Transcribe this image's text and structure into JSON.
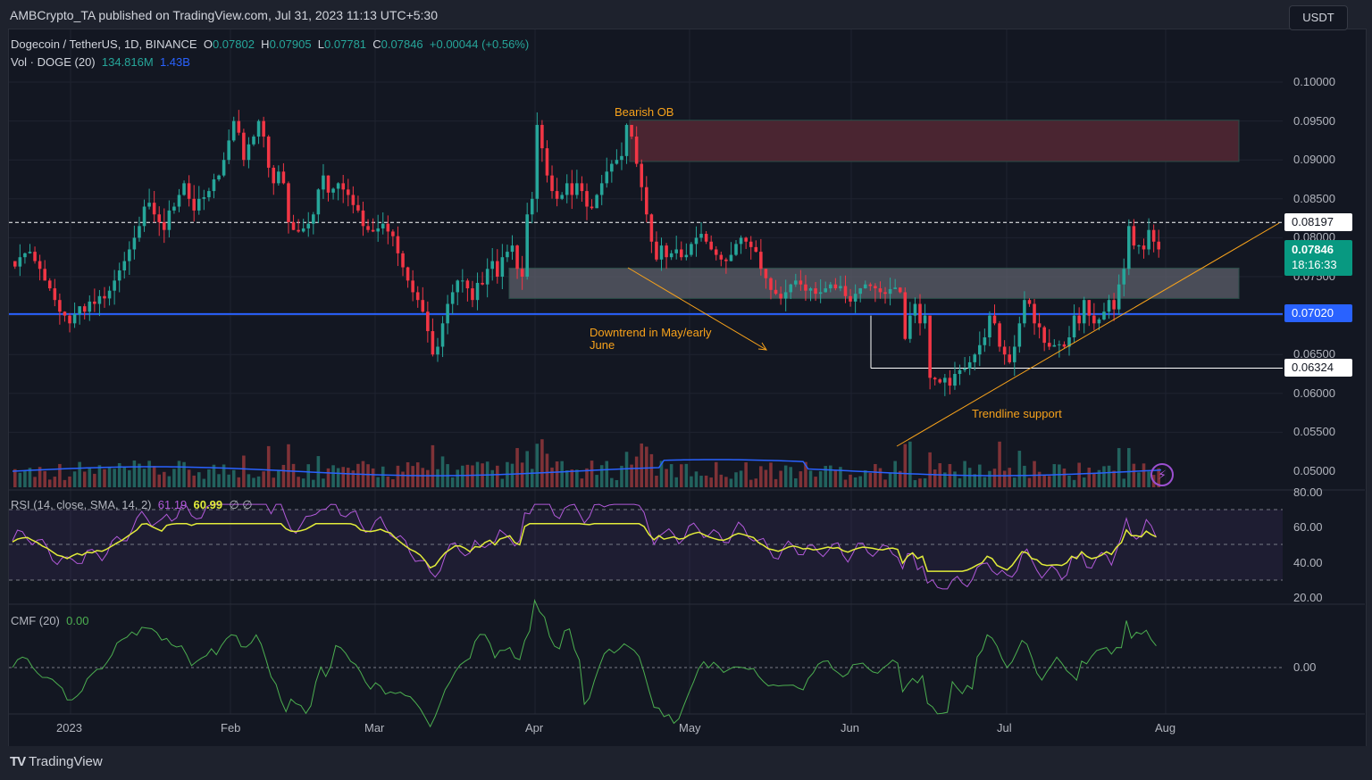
{
  "header": {
    "published_by": "AMBCrypto_TA published on TradingView.com, Jul 31, 2023 11:13 UTC+5:30"
  },
  "legend": {
    "symbol": "Dogecoin / TetherUS, 1D, BINANCE",
    "open_label": "O",
    "open": "0.07802",
    "high_label": "H",
    "high": "0.07905",
    "low_label": "L",
    "low": "0.07781",
    "close_label": "C",
    "close": "0.07846",
    "change": "+0.00044 (+0.56%)",
    "volume_title": "Vol · DOGE (20)",
    "volume_value": "134.816M",
    "volume_ma": "1.43B",
    "rsi_title": "RSI (14, close, SMA, 14, 2)",
    "rsi_value": "61.19",
    "rsi_ma_value": "60.99",
    "rsi_extra": "∅  ∅",
    "cmf_title": "CMF (20)",
    "cmf_value": "0.00"
  },
  "price_scale": {
    "currency_button": "USDT",
    "ticks": [
      "0.10000",
      "0.09500",
      "0.09000",
      "0.08500",
      "0.08000",
      "0.07500",
      "0.06500",
      "0.06000",
      "0.05500",
      "0.05000"
    ],
    "tags": {
      "resistance": "0.08197",
      "last_price": "0.07846",
      "countdown": "18:16:33",
      "support_blue": "0.07020",
      "support_low": "0.06324"
    }
  },
  "rsi_scale": {
    "ticks": [
      "80.00",
      "60.00",
      "40.00",
      "20.00"
    ]
  },
  "cmf_scale": {
    "ticks": [
      "0.00"
    ]
  },
  "time_axis": {
    "labels": [
      "2023",
      "Feb",
      "Mar",
      "Apr",
      "May",
      "Jun",
      "Jul",
      "Aug"
    ]
  },
  "annotations": {
    "bearish_ob": "Bearish OB",
    "downtrend": "Downtrend in May/early",
    "downtrend2": "June",
    "trendline": "Trendline support"
  },
  "footer": {
    "brand": "TradingView"
  },
  "colors": {
    "up": "#26a69a",
    "down": "#f23645",
    "vol_up": "#22625e",
    "vol_down": "#7f3237",
    "vol_ma": "#2962ff",
    "rsi": "#b159d9",
    "rsi_ma": "#e2ec3a",
    "cmf": "#4caf50",
    "annotation": "#f7a21b",
    "ob_zone": "#4a2531",
    "grey_zone": "#5d606b",
    "blue_line": "#2962ff"
  },
  "chart_data": {
    "type": "candlestick",
    "title": "Dogecoin / TetherUS, 1D, BINANCE",
    "xlabel": "",
    "ylabel": "USDT",
    "ylim": [
      0.0485,
      0.1035
    ],
    "x_range": [
      "2022-12-20",
      "2023-07-31"
    ],
    "levels": {
      "resistance": 0.08197,
      "support": 0.0702,
      "low_line": 0.06324
    },
    "zones": [
      {
        "name": "Bearish OB",
        "from": 0.0898,
        "to": 0.0951,
        "start": "2023-04-20"
      },
      {
        "name": "Grey demand zone",
        "from": 0.0722,
        "to": 0.0761,
        "start": "2023-03-28"
      }
    ],
    "closes": [
      0.0763,
      0.0775,
      0.078,
      0.0782,
      0.077,
      0.076,
      0.0745,
      0.0735,
      0.072,
      0.0705,
      0.07,
      0.069,
      0.0702,
      0.0712,
      0.0705,
      0.0718,
      0.0715,
      0.0725,
      0.0722,
      0.0732,
      0.0745,
      0.0758,
      0.077,
      0.0785,
      0.08,
      0.0815,
      0.084,
      0.0845,
      0.083,
      0.082,
      0.081,
      0.0835,
      0.084,
      0.0855,
      0.087,
      0.085,
      0.0835,
      0.085,
      0.0852,
      0.086,
      0.0875,
      0.088,
      0.09,
      0.0925,
      0.095,
      0.0935,
      0.09,
      0.092,
      0.093,
      0.095,
      0.093,
      0.089,
      0.087,
      0.0885,
      0.087,
      0.082,
      0.081,
      0.0808,
      0.0812,
      0.0818,
      0.083,
      0.0862,
      0.088,
      0.0858,
      0.0863,
      0.087,
      0.0862,
      0.0855,
      0.0842,
      0.0835,
      0.0815,
      0.081,
      0.0808,
      0.0812,
      0.0818,
      0.0808,
      0.0802,
      0.078,
      0.0762,
      0.0745,
      0.073,
      0.072,
      0.0705,
      0.068,
      0.065,
      0.066,
      0.069,
      0.0715,
      0.073,
      0.0745,
      0.0745,
      0.0735,
      0.072,
      0.0742,
      0.074,
      0.076,
      0.077,
      0.075,
      0.0775,
      0.0782,
      0.079,
      0.076,
      0.075,
      0.083,
      0.085,
      0.0945,
      0.0915,
      0.088,
      0.086,
      0.085,
      0.0855,
      0.087,
      0.0855,
      0.087,
      0.086,
      0.084,
      0.0838,
      0.0855,
      0.087,
      0.0885,
      0.0895,
      0.09,
      0.0905,
      0.0945,
      0.093,
      0.0895,
      0.0865,
      0.083,
      0.0795,
      0.0772,
      0.079,
      0.0775,
      0.078,
      0.0785,
      0.0775,
      0.0778,
      0.0792,
      0.08,
      0.0805,
      0.0795,
      0.0785,
      0.0778,
      0.0772,
      0.077,
      0.0778,
      0.0792,
      0.08,
      0.0795,
      0.0788,
      0.0782,
      0.076,
      0.0748,
      0.0733,
      0.0728,
      0.0722,
      0.073,
      0.074,
      0.0745,
      0.074,
      0.0732,
      0.0735,
      0.0728,
      0.073,
      0.0735,
      0.074,
      0.0735,
      0.0738,
      0.0725,
      0.0718,
      0.0728,
      0.0735,
      0.074,
      0.0738,
      0.0735,
      0.073,
      0.0728,
      0.0734,
      0.0736,
      0.073,
      0.067,
      0.07,
      0.0715,
      0.069,
      0.07,
      0.062,
      0.0618,
      0.0614,
      0.062,
      0.061,
      0.0625,
      0.063,
      0.0632,
      0.064,
      0.065,
      0.0662,
      0.0672,
      0.07,
      0.069,
      0.066,
      0.065,
      0.064,
      0.066,
      0.069,
      0.072,
      0.0715,
      0.069,
      0.0685,
      0.0665,
      0.066,
      0.0662,
      0.0663,
      0.066,
      0.0672,
      0.07,
      0.069,
      0.072,
      0.07,
      0.069,
      0.0695,
      0.0705,
      0.072,
      0.0708,
      0.074,
      0.076,
      0.0815,
      0.079,
      0.079,
      0.0785,
      0.081,
      0.0795,
      0.0785
    ]
  }
}
